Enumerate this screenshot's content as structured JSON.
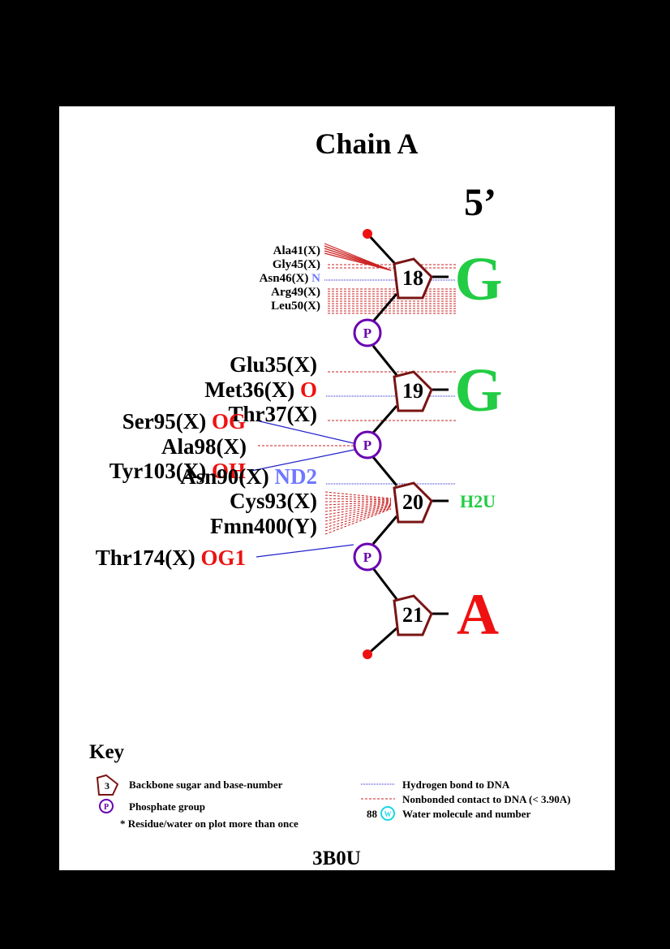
{
  "title": "Chain A",
  "strand_end_label": "5’",
  "pdb_id": "3B0U",
  "colors": {
    "background": "#000000",
    "panel": "#ffffff",
    "sugar": "#7a1414",
    "phosphate": "#6a00b0",
    "hbond": "#2222cc",
    "nonbonded": "#cc2222",
    "guanine": "#22cc44",
    "adenine": "#ee1111",
    "modified_base": "#22cc44",
    "atom_red": "#ee1111",
    "atom_blue": "#6f78ff",
    "water": "#19d7e6"
  },
  "phosphate_symbol": "P",
  "nucleotides": [
    {
      "number": "18",
      "base": "G",
      "base_color": "guanine"
    },
    {
      "number": "19",
      "base": "G",
      "base_color": "guanine"
    },
    {
      "number": "20",
      "base": "H2U",
      "base_color": "modified_base"
    },
    {
      "number": "21",
      "base": "A",
      "base_color": "adenine"
    }
  ],
  "residues": [
    {
      "name": "Ala41(X)",
      "atom": "",
      "atom_color": ""
    },
    {
      "name": "Gly45(X)",
      "atom": "",
      "atom_color": ""
    },
    {
      "name": "Asn46(X)",
      "atom": "N",
      "atom_color": "atom_blue"
    },
    {
      "name": "Arg49(X)",
      "atom": "",
      "atom_color": ""
    },
    {
      "name": "Leu50(X)",
      "atom": "",
      "atom_color": ""
    },
    {
      "name": "Glu35(X)",
      "atom": "",
      "atom_color": ""
    },
    {
      "name": "Met36(X)",
      "atom": "O",
      "atom_color": "atom_red"
    },
    {
      "name": "Thr37(X)",
      "atom": "",
      "atom_color": ""
    },
    {
      "name": "Ser95(X)",
      "atom": "OG",
      "atom_color": "atom_red"
    },
    {
      "name": "Ala98(X)",
      "atom": "",
      "atom_color": ""
    },
    {
      "name": "Tyr103(X)",
      "atom": "OH",
      "atom_color": "atom_red"
    },
    {
      "name": "Asn90(X)",
      "atom": "ND2",
      "atom_color": "atom_blue"
    },
    {
      "name": "Cys93(X)",
      "atom": "",
      "atom_color": ""
    },
    {
      "name": "Fmn400(Y)",
      "atom": "",
      "atom_color": ""
    },
    {
      "name": "Thr174(X)",
      "atom": "OG1",
      "atom_color": "atom_red"
    }
  ],
  "key": {
    "heading": "Key",
    "sugar_example_number": "3",
    "sugar_label": "Backbone sugar and base-number",
    "phosphate_label": "Phosphate group",
    "repeat_note": "* Residue/water on plot more than once",
    "hbond_label": "Hydrogen bond to DNA",
    "nonbonded_label": "Nonbonded contact to DNA (< 3.90A)",
    "water_number": "88",
    "water_symbol": "W",
    "water_label": "Water molecule and number"
  }
}
